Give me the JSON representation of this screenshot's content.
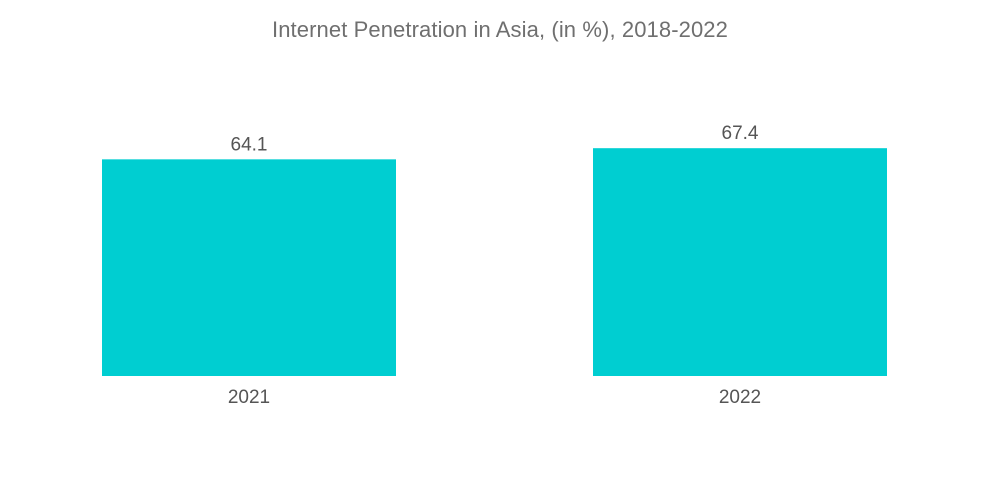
{
  "title": "Internet Penetration in Asia, (in %), 2018-2022",
  "colors": {
    "bar": "#00CED1",
    "text": "#555555",
    "title": "#6f6f6f"
  },
  "chart_data": {
    "type": "bar",
    "title": "Internet Penetration in Asia, (in %), 2018-2022",
    "categories": [
      "2021",
      "2022"
    ],
    "values": [
      64.1,
      67.4
    ],
    "data_labels": [
      "64.1",
      "67.4"
    ],
    "xlabel": "",
    "ylabel": "",
    "ylim": [
      0,
      70
    ],
    "grid": false,
    "legend": "none"
  }
}
